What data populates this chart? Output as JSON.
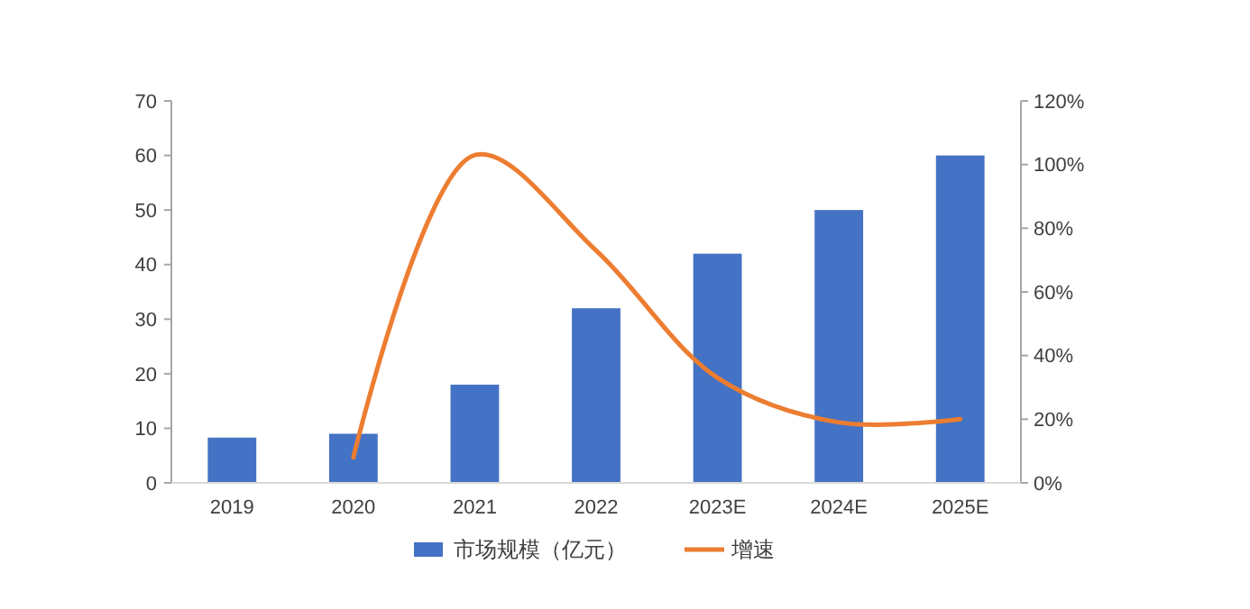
{
  "chart_data": {
    "type": "bar",
    "categories": [
      "2019",
      "2020",
      "2021",
      "2022",
      "2023E",
      "2024E",
      "2025E"
    ],
    "series": [
      {
        "name": "市场规模（亿元）",
        "color": "#4472c4",
        "values": [
          8.3,
          9,
          18,
          32,
          42,
          50,
          60
        ]
      },
      {
        "name": "增速",
        "type": "line",
        "axis": "y2",
        "color": "#ed7d31",
        "values": [
          null,
          8,
          103,
          73,
          33,
          19,
          20
        ]
      }
    ],
    "ylim": [
      0,
      70
    ],
    "yticks": [
      0,
      10,
      20,
      30,
      40,
      50,
      60,
      70
    ],
    "y2lim": [
      0,
      120
    ],
    "y2ticks": [
      {
        "value": 0,
        "label": "0%"
      },
      {
        "value": 20,
        "label": "20%"
      },
      {
        "value": 40,
        "label": "40%"
      },
      {
        "value": 60,
        "label": "60%"
      },
      {
        "value": 80,
        "label": "80%"
      },
      {
        "value": 100,
        "label": "100%"
      },
      {
        "value": 120,
        "label": "120%"
      }
    ],
    "grid": false,
    "legend": "bottom"
  }
}
